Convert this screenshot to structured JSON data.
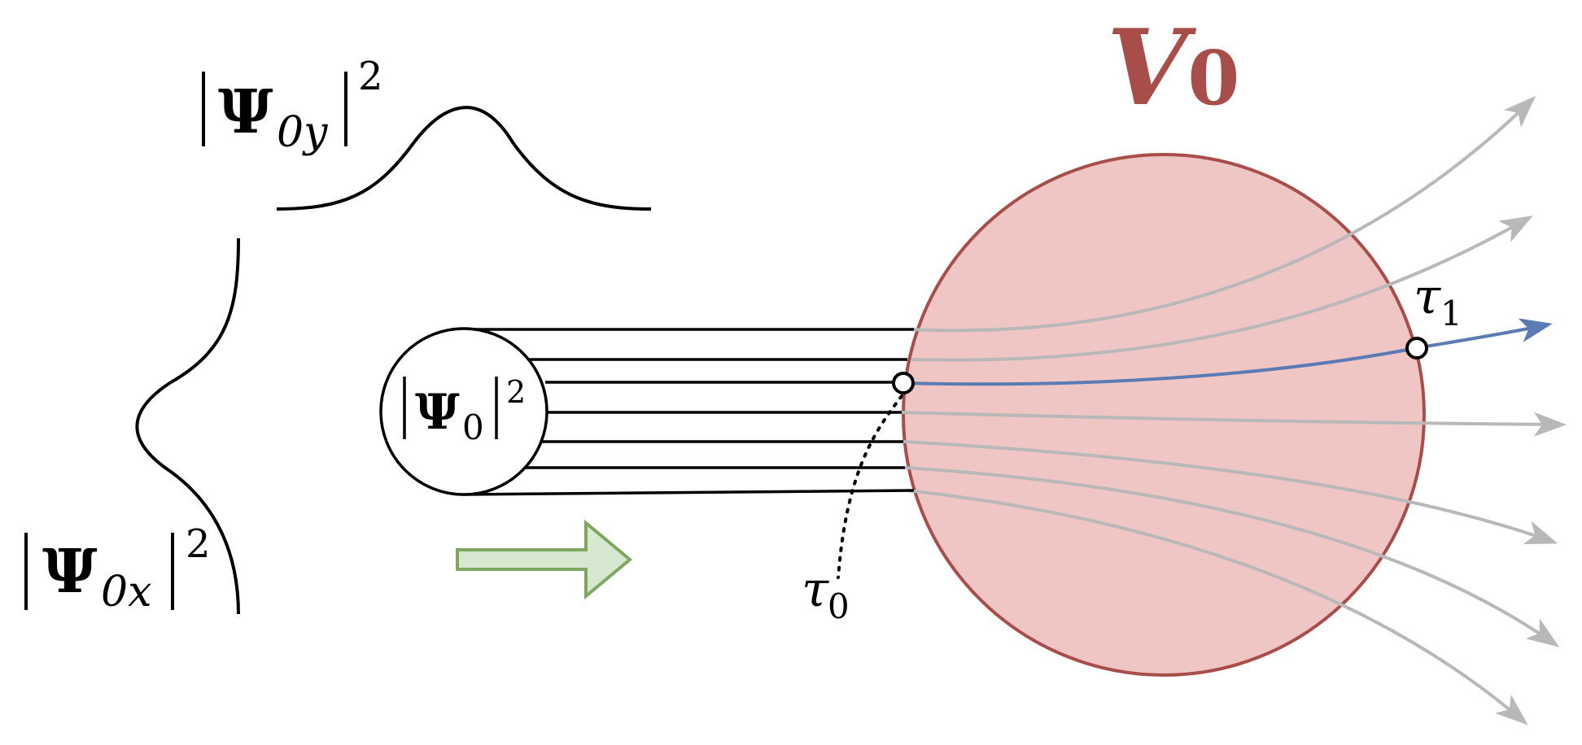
{
  "labels": {
    "potential": {
      "symbol": "V",
      "sub": "0"
    },
    "psi_y": {
      "symbol": "Ψ",
      "sub": "0y",
      "sup": "2"
    },
    "psi_x": {
      "symbol": "Ψ",
      "sub": "0x",
      "sup": "2"
    },
    "psi_0": {
      "symbol": "Ψ",
      "sub": "0",
      "sup": "2"
    },
    "tau_0": {
      "symbol": "τ",
      "sub": "0"
    },
    "tau_1": {
      "symbol": "τ",
      "sub": "1"
    }
  },
  "colors": {
    "potential_fill": "#efc6c4",
    "potential_stroke": "#a84e4a",
    "potential_label": "#a84e4a",
    "trajectory_gray": "#b8b8b8",
    "trajectory_highlight": "#5b7bb5",
    "arrow_fill": "#d6e8d0",
    "arrow_stroke": "#7ea860",
    "ink": "#000000"
  }
}
